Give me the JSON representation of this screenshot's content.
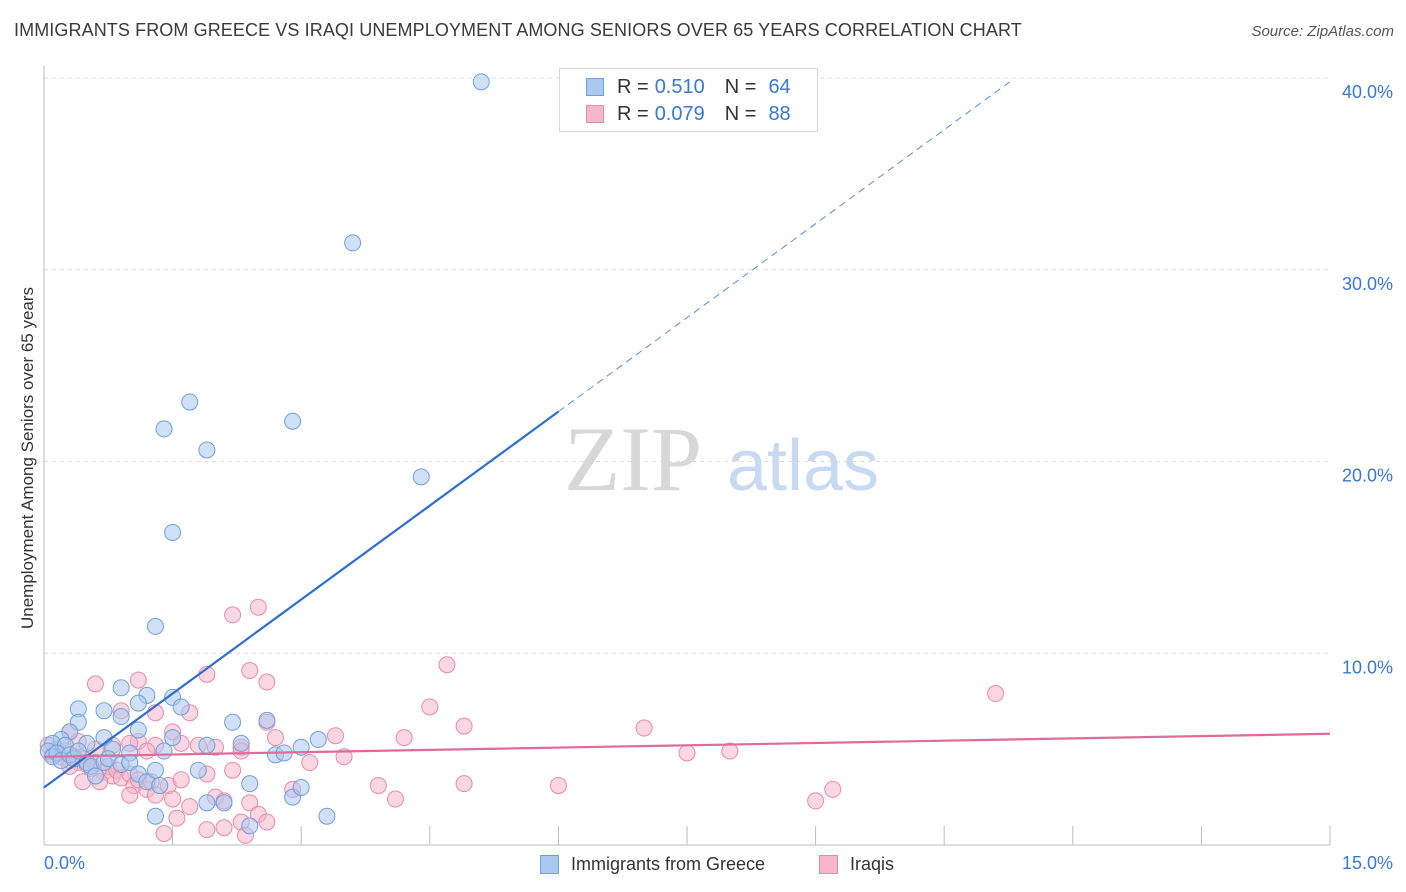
{
  "title": "IMMIGRANTS FROM GREECE VS IRAQI UNEMPLOYMENT AMONG SENIORS OVER 65 YEARS CORRELATION CHART",
  "source": "Source: ZipAtlas.com",
  "colors": {
    "greece_fill": "#aac8f0",
    "greece_stroke": "#6f9fdc",
    "greece_line": "#2e6ecf",
    "iraqi_fill": "#f6b7cb",
    "iraqi_stroke": "#e88aa8",
    "iraqi_line": "#e06b98",
    "accent_text": "#3a78d0",
    "grid": "#dddddd"
  },
  "legend": {
    "greece": {
      "r_label": "R =",
      "r_value": "0.510",
      "n_label": "N =",
      "n_value": "64"
    },
    "iraqi": {
      "r_label": "R =",
      "r_value": "0.079",
      "n_label": "N =",
      "n_value": "88"
    }
  },
  "watermark": {
    "part1": "ZIP",
    "part2": "atlas"
  },
  "chart_data": {
    "type": "scatter",
    "title": "IMMIGRANTS FROM GREECE VS IRAQI UNEMPLOYMENT AMONG SENIORS OVER 65 YEARS CORRELATION CHART",
    "xlabel": "",
    "ylabel": "Unemployment Among Seniors over 65 years",
    "xlim": [
      0,
      15
    ],
    "ylim": [
      0,
      40
    ],
    "x_tick_labels": [
      "0.0%",
      "15.0%"
    ],
    "y_ticks": [
      10,
      20,
      30,
      40
    ],
    "y_tick_labels": [
      "10.0%",
      "20.0%",
      "30.0%",
      "40.0%"
    ],
    "legend_position": "top-center",
    "series": [
      {
        "name": "Immigrants from Greece",
        "r": 0.51,
        "n": 64,
        "trend": {
          "x0": 0,
          "y0": 3.0,
          "x1": 6.0,
          "y1": 22.6,
          "dashed_to_x": 11.3
        },
        "points": [
          [
            5.1,
            39.8
          ],
          [
            3.6,
            31.4
          ],
          [
            1.7,
            23.1
          ],
          [
            1.4,
            21.7
          ],
          [
            1.9,
            20.6
          ],
          [
            2.9,
            22.1
          ],
          [
            4.4,
            19.2
          ],
          [
            1.5,
            16.3
          ],
          [
            1.3,
            11.4
          ],
          [
            0.9,
            8.2
          ],
          [
            1.2,
            7.8
          ],
          [
            1.5,
            7.7
          ],
          [
            0.4,
            7.1
          ],
          [
            0.7,
            7.0
          ],
          [
            1.1,
            7.4
          ],
          [
            1.6,
            7.2
          ],
          [
            0.9,
            6.7
          ],
          [
            0.4,
            6.4
          ],
          [
            1.1,
            6.0
          ],
          [
            0.3,
            5.9
          ],
          [
            0.7,
            5.6
          ],
          [
            0.2,
            5.5
          ],
          [
            0.1,
            5.3
          ],
          [
            0.25,
            5.2
          ],
          [
            0.5,
            5.3
          ],
          [
            0.8,
            5.0
          ],
          [
            1.0,
            4.8
          ],
          [
            1.4,
            4.9
          ],
          [
            1.5,
            5.6
          ],
          [
            1.9,
            5.2
          ],
          [
            2.2,
            6.4
          ],
          [
            2.3,
            5.3
          ],
          [
            2.6,
            6.5
          ],
          [
            2.7,
            4.7
          ],
          [
            2.8,
            4.8
          ],
          [
            3.2,
            5.5
          ],
          [
            0.05,
            4.9
          ],
          [
            0.1,
            4.6
          ],
          [
            0.15,
            4.8
          ],
          [
            0.2,
            4.4
          ],
          [
            0.3,
            4.7
          ],
          [
            0.35,
            4.5
          ],
          [
            0.4,
            4.9
          ],
          [
            0.5,
            4.3
          ],
          [
            0.55,
            4.1
          ],
          [
            0.6,
            3.6
          ],
          [
            0.7,
            4.3
          ],
          [
            0.75,
            4.5
          ],
          [
            0.9,
            4.2
          ],
          [
            1.0,
            4.3
          ],
          [
            1.1,
            3.7
          ],
          [
            1.2,
            3.3
          ],
          [
            1.3,
            3.9
          ],
          [
            1.35,
            3.1
          ],
          [
            1.8,
            3.9
          ],
          [
            1.9,
            2.2
          ],
          [
            2.1,
            2.2
          ],
          [
            2.4,
            1.0
          ],
          [
            2.4,
            3.2
          ],
          [
            2.9,
            2.5
          ],
          [
            3.0,
            5.1
          ],
          [
            3.0,
            3.0
          ],
          [
            3.3,
            1.5
          ],
          [
            1.3,
            1.5
          ]
        ]
      },
      {
        "name": "Iraqis",
        "r": 0.079,
        "n": 88,
        "trend": {
          "x0": 0,
          "y0": 4.6,
          "x1": 15,
          "y1": 5.8
        },
        "points": [
          [
            2.5,
            12.4
          ],
          [
            2.2,
            12.0
          ],
          [
            4.7,
            9.4
          ],
          [
            2.4,
            9.1
          ],
          [
            1.9,
            8.9
          ],
          [
            1.1,
            8.6
          ],
          [
            0.6,
            8.4
          ],
          [
            2.6,
            8.5
          ],
          [
            11.1,
            7.9
          ],
          [
            1.7,
            6.9
          ],
          [
            4.5,
            7.2
          ],
          [
            0.9,
            7.0
          ],
          [
            1.3,
            6.9
          ],
          [
            2.6,
            6.4
          ],
          [
            4.9,
            6.2
          ],
          [
            7.0,
            6.1
          ],
          [
            1.5,
            5.9
          ],
          [
            3.4,
            5.7
          ],
          [
            4.2,
            5.6
          ],
          [
            2.7,
            5.6
          ],
          [
            1.1,
            5.4
          ],
          [
            1.3,
            5.2
          ],
          [
            1.6,
            5.3
          ],
          [
            1.8,
            5.2
          ],
          [
            2.0,
            5.1
          ],
          [
            2.3,
            5.1
          ],
          [
            7.5,
            4.8
          ],
          [
            8.0,
            4.9
          ],
          [
            0.3,
            5.9
          ],
          [
            0.4,
            5.4
          ],
          [
            0.6,
            5.0
          ],
          [
            0.8,
            5.2
          ],
          [
            1.0,
            5.3
          ],
          [
            1.2,
            4.9
          ],
          [
            0.05,
            5.2
          ],
          [
            0.1,
            4.7
          ],
          [
            0.15,
            5.0
          ],
          [
            0.2,
            4.6
          ],
          [
            0.25,
            4.9
          ],
          [
            0.3,
            4.4
          ],
          [
            0.35,
            4.6
          ],
          [
            0.4,
            4.3
          ],
          [
            0.45,
            4.5
          ],
          [
            0.5,
            4.2
          ],
          [
            0.55,
            4.0
          ],
          [
            0.6,
            4.3
          ],
          [
            0.7,
            3.8
          ],
          [
            0.75,
            4.1
          ],
          [
            0.8,
            3.6
          ],
          [
            0.85,
            3.9
          ],
          [
            0.9,
            3.5
          ],
          [
            1.0,
            3.7
          ],
          [
            1.05,
            3.1
          ],
          [
            1.1,
            3.4
          ],
          [
            1.2,
            2.9
          ],
          [
            1.25,
            3.3
          ],
          [
            1.3,
            2.6
          ],
          [
            1.45,
            3.1
          ],
          [
            1.5,
            2.4
          ],
          [
            1.6,
            3.4
          ],
          [
            1.7,
            2.0
          ],
          [
            1.9,
            3.7
          ],
          [
            2.0,
            2.5
          ],
          [
            2.1,
            2.3
          ],
          [
            2.2,
            3.9
          ],
          [
            2.3,
            4.9
          ],
          [
            2.4,
            2.2
          ],
          [
            2.5,
            1.6
          ],
          [
            2.6,
            1.2
          ],
          [
            2.9,
            2.9
          ],
          [
            3.1,
            4.3
          ],
          [
            3.5,
            4.6
          ],
          [
            3.9,
            3.1
          ],
          [
            4.1,
            2.4
          ],
          [
            4.9,
            3.2
          ],
          [
            6.0,
            3.1
          ],
          [
            9.2,
            2.9
          ],
          [
            9.0,
            2.3
          ],
          [
            1.4,
            0.6
          ],
          [
            1.9,
            0.8
          ],
          [
            2.1,
            0.9
          ],
          [
            2.3,
            1.2
          ],
          [
            2.35,
            0.5
          ],
          [
            0.3,
            4.1
          ],
          [
            0.45,
            3.3
          ],
          [
            0.65,
            3.3
          ],
          [
            1.55,
            1.4
          ],
          [
            1.0,
            2.6
          ]
        ]
      }
    ]
  },
  "bottom_legend": {
    "greece": "Immigrants from Greece",
    "iraqi": "Iraqis"
  }
}
